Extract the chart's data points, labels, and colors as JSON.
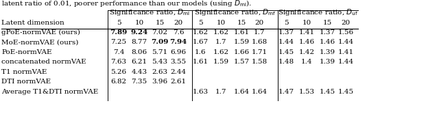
{
  "top_text": "latent ratio of 0.01, poorer performance than our models (using ",
  "top_text2": "D_ml",
  "top_text3": ").",
  "row_label": "Latent dimension",
  "col_headers": [
    "Significance ratio, $D_{\\mathrm{ml}}$",
    "Significance ratio, $D_{\\mathrm{mf}}$",
    "Significance ratio, $D_{\\mathrm{uf}}$"
  ],
  "sub_labels": [
    "5",
    "10",
    "15",
    "20"
  ],
  "rows": [
    {
      "name": "gPoE-normVAE (ours)",
      "ml": [
        "7.89",
        "9.24",
        "7.02",
        "7.6"
      ],
      "ml_bold": [
        true,
        true,
        false,
        false
      ],
      "mf": [
        "1.62",
        "1.62",
        "1.61",
        "1.7"
      ],
      "mf_bold": [
        false,
        false,
        false,
        false
      ],
      "uf": [
        "1.37",
        "1.41",
        "1.37",
        "1.56"
      ],
      "uf_bold": [
        false,
        false,
        false,
        false
      ]
    },
    {
      "name": "MoE-normVAE (ours)",
      "ml": [
        "7.25",
        "8.77",
        "7.09",
        "7.94"
      ],
      "ml_bold": [
        false,
        false,
        true,
        true
      ],
      "mf": [
        "1.67",
        "1.7",
        "1.59",
        "1.68"
      ],
      "mf_bold": [
        false,
        false,
        false,
        false
      ],
      "uf": [
        "1.44",
        "1.46",
        "1.46",
        "1.44"
      ],
      "uf_bold": [
        false,
        false,
        false,
        false
      ]
    },
    {
      "name": "PoE-normVAE",
      "ml": [
        "7.4",
        "8.06",
        "5.71",
        "6.96"
      ],
      "ml_bold": [
        false,
        false,
        false,
        false
      ],
      "mf": [
        "1.6",
        "1.62",
        "1.66",
        "1.71"
      ],
      "mf_bold": [
        false,
        false,
        false,
        false
      ],
      "uf": [
        "1.45",
        "1.42",
        "1.39",
        "1.41"
      ],
      "uf_bold": [
        false,
        false,
        false,
        false
      ]
    },
    {
      "name": "concatenated normVAE",
      "ml": [
        "7.63",
        "6.21",
        "5.43",
        "3.55"
      ],
      "ml_bold": [
        false,
        false,
        false,
        false
      ],
      "mf": [
        "1.61",
        "1.59",
        "1.57",
        "1.58"
      ],
      "mf_bold": [
        false,
        false,
        false,
        false
      ],
      "uf": [
        "1.48",
        "1.4",
        "1.39",
        "1.44"
      ],
      "uf_bold": [
        false,
        false,
        false,
        false
      ]
    },
    {
      "name": "T1 normVAE",
      "ml": [
        "5.26",
        "4.43",
        "2.63",
        "2.44"
      ],
      "ml_bold": [
        false,
        false,
        false,
        false
      ],
      "mf": [
        "",
        "",
        "",
        ""
      ],
      "mf_bold": [
        false,
        false,
        false,
        false
      ],
      "uf": [
        "",
        "",
        "",
        ""
      ],
      "uf_bold": [
        false,
        false,
        false,
        false
      ]
    },
    {
      "name": "DTI normVAE",
      "ml": [
        "6.82",
        "7.35",
        "3.96",
        "2.61"
      ],
      "ml_bold": [
        false,
        false,
        false,
        false
      ],
      "mf": [
        "",
        "",
        "",
        ""
      ],
      "mf_bold": [
        false,
        false,
        false,
        false
      ],
      "uf": [
        "",
        "",
        "",
        ""
      ],
      "uf_bold": [
        false,
        false,
        false,
        false
      ]
    },
    {
      "name": "Average T1&DTI normVAE",
      "ml": [
        "",
        "",
        "",
        ""
      ],
      "ml_bold": [
        false,
        false,
        false,
        false
      ],
      "mf": [
        "1.63",
        "1.7",
        "1.64",
        "1.64"
      ],
      "mf_bold": [
        false,
        false,
        false,
        false
      ],
      "uf": [
        "1.47",
        "1.53",
        "1.45",
        "1.45"
      ],
      "uf_bold": [
        false,
        false,
        false,
        false
      ]
    }
  ],
  "fs": 7.5,
  "hfs": 7.5
}
